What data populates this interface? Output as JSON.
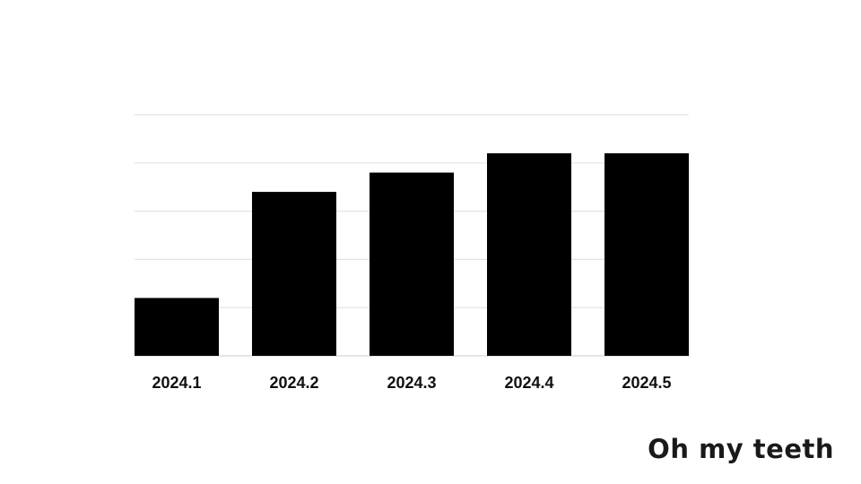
{
  "chart_data": {
    "type": "bar",
    "title": "",
    "xlabel": "",
    "ylabel": "",
    "categories": [
      "2024.1",
      "2024.2",
      "2024.3",
      "2024.4",
      "2024.5"
    ],
    "values": [
      12,
      34,
      38,
      42,
      42
    ],
    "ylim": [
      0,
      50
    ],
    "gridlines": [
      10,
      20,
      30,
      40,
      50
    ],
    "grid": true,
    "legend": "none",
    "y_tick_labels_shown": false,
    "colors": {
      "bar": "#000000",
      "grid": "#e3e3e3",
      "background": "#ffffff"
    }
  },
  "brand": {
    "logo_text": "Oh my teeth"
  }
}
